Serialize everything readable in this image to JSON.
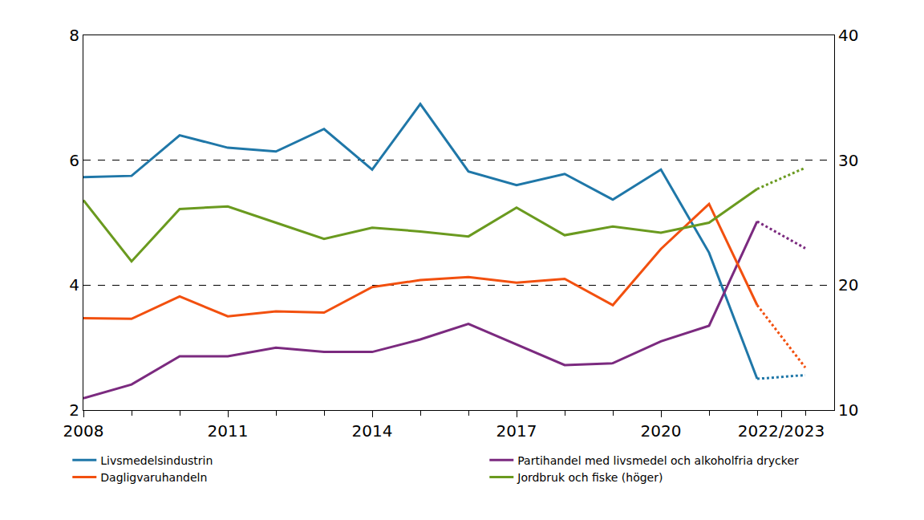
{
  "chart_data": {
    "type": "line",
    "x": [
      2008,
      2009,
      2010,
      2011,
      2012,
      2013,
      2014,
      2015,
      2016,
      2017,
      2018,
      2019,
      2020,
      2021,
      2022,
      2023
    ],
    "xlim": [
      2008,
      2023.6
    ],
    "xticks": [
      2008,
      2011,
      2014,
      2017,
      2020,
      {
        "value": 2022.5,
        "label": "2022/2023"
      }
    ],
    "ylim": [
      2,
      8
    ],
    "yticks": [
      2,
      4,
      6,
      8
    ],
    "y2lim": [
      10,
      40
    ],
    "y2ticks": [
      10,
      20,
      30,
      40
    ],
    "grid": true,
    "legend": "bottom",
    "series": [
      {
        "name": "Livsmedelsindustrin",
        "color": "#1f77a8",
        "line_style": "solid",
        "values": [
          5.73,
          5.75,
          6.4,
          6.2,
          6.14,
          6.5,
          5.85,
          6.9,
          5.82,
          5.6,
          5.78,
          5.37,
          5.85,
          4.52,
          2.5,
          null
        ]
      },
      {
        "name": "Livsmedelsindustrin",
        "color": "#1f77a8",
        "line_style": "dot",
        "values": [
          null,
          null,
          null,
          null,
          null,
          null,
          null,
          null,
          null,
          null,
          null,
          null,
          null,
          null,
          2.5,
          2.56
        ]
      },
      {
        "name": "Partihandel med livsmedel och alkoholfria drycker",
        "color": "#7b2a7f",
        "line_style": "solid",
        "values": [
          2.19,
          2.41,
          2.86,
          2.86,
          3.0,
          2.93,
          2.93,
          3.13,
          3.38,
          3.05,
          2.72,
          2.75,
          3.1,
          3.35,
          5.02,
          null
        ]
      },
      {
        "name": "Partihandel med livsmedel och alkoholfria drycker",
        "color": "#7b2a7f",
        "line_style": "dot",
        "values": [
          null,
          null,
          null,
          null,
          null,
          null,
          null,
          null,
          null,
          null,
          null,
          null,
          null,
          null,
          5.02,
          4.59
        ]
      },
      {
        "name": "Dagligvaruhandeln",
        "color": "#f2500f",
        "line_style": "solid",
        "values": [
          3.47,
          3.46,
          3.82,
          3.5,
          3.58,
          3.56,
          3.97,
          4.08,
          4.13,
          4.04,
          4.1,
          3.68,
          4.58,
          5.3,
          3.68,
          null
        ]
      },
      {
        "name": "Dagligvaruhandeln",
        "color": "#f2500f",
        "line_style": "dot",
        "values": [
          null,
          null,
          null,
          null,
          null,
          null,
          null,
          null,
          null,
          null,
          null,
          null,
          null,
          null,
          3.68,
          2.68
        ]
      },
      {
        "name": "Jordbruk och fiske (höger)",
        "color": "#6a9a1f",
        "line_style": "solid",
        "axis": "y2",
        "values": [
          26.8,
          21.9,
          26.1,
          26.3,
          25.0,
          23.7,
          24.6,
          24.3,
          23.9,
          26.2,
          24.0,
          24.7,
          24.2,
          25.0,
          27.7,
          null
        ]
      },
      {
        "name": "Jordbruk och fiske (höger)",
        "color": "#6a9a1f",
        "line_style": "dot",
        "axis": "y2",
        "values": [
          null,
          null,
          null,
          null,
          null,
          null,
          null,
          null,
          null,
          null,
          null,
          null,
          null,
          null,
          27.7,
          29.4
        ]
      }
    ]
  }
}
